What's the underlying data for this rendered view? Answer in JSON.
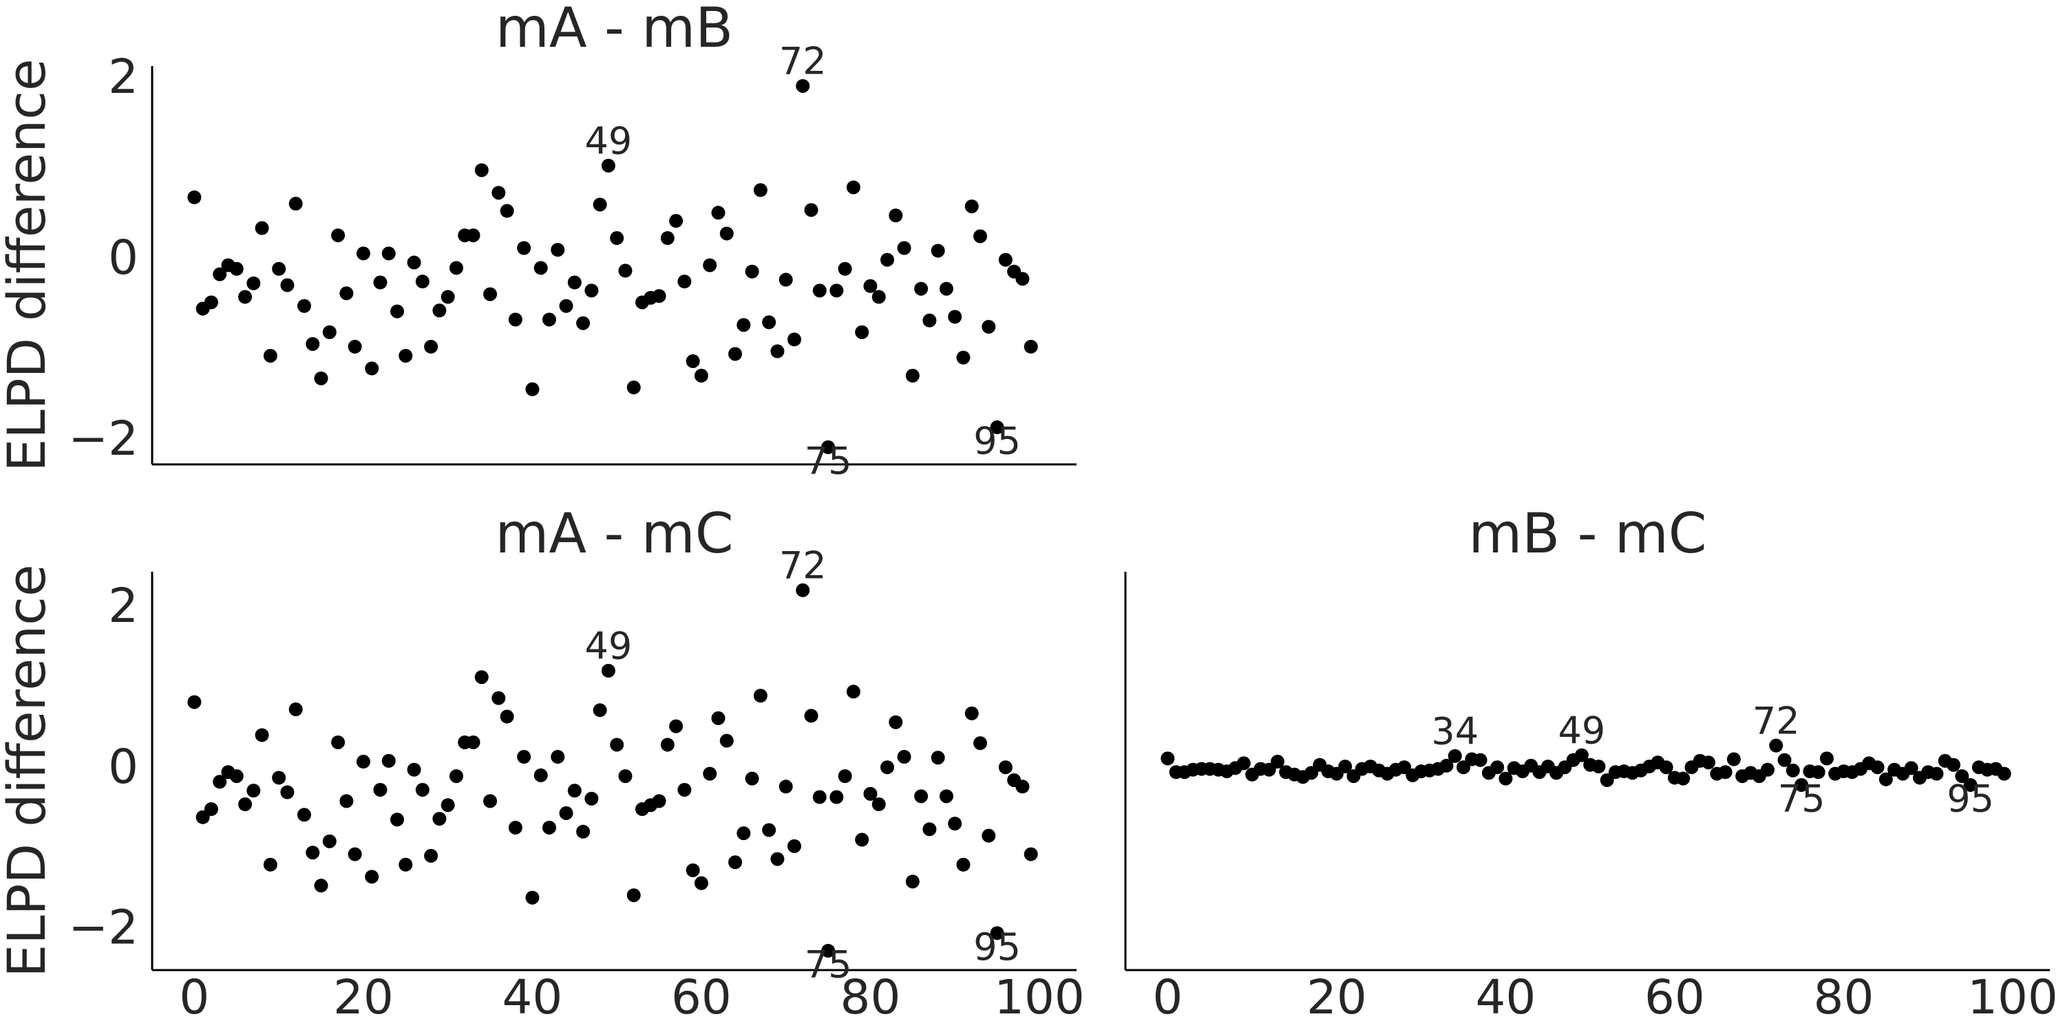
{
  "chart_data": [
    {
      "type": "scatter",
      "title": "mA - mB",
      "ylabel": "ELPD difference",
      "color": "#000000",
      "xlim": [
        -5,
        104.4
      ],
      "ylim": [
        -2.25,
        2.15
      ],
      "yticks": [
        -2,
        0,
        2
      ],
      "values": [
        0.7,
        -0.53,
        -0.46,
        -0.15,
        -0.05,
        -0.09,
        -0.4,
        -0.25,
        0.36,
        -1.05,
        -0.09,
        -0.27,
        0.63,
        -0.5,
        -0.92,
        -1.3,
        -0.79,
        0.28,
        -0.36,
        -0.95,
        0.08,
        -1.19,
        -0.24,
        0.08,
        -0.56,
        -1.05,
        -0.02,
        -0.23,
        -0.95,
        -0.55,
        -0.4,
        -0.08,
        0.28,
        0.28,
        1.0,
        -0.37,
        0.75,
        0.55,
        -0.65,
        0.14,
        -1.42,
        -0.08,
        -0.65,
        0.12,
        -0.5,
        -0.24,
        -0.69,
        -0.33,
        0.62,
        1.05,
        0.25,
        -0.11,
        -1.4,
        -0.46,
        -0.41,
        -0.39,
        0.25,
        0.44,
        -0.23,
        -1.11,
        -1.27,
        -0.05,
        0.53,
        0.3,
        -1.03,
        -0.71,
        -0.12,
        0.78,
        -0.68,
        -1.0,
        -0.21,
        -0.87,
        1.93,
        0.56,
        -0.33,
        -2.06,
        -0.33,
        -0.09,
        0.81,
        -0.79,
        -0.28,
        -0.4,
        0.01,
        0.5,
        0.14,
        -1.27,
        -0.31,
        -0.66,
        0.11,
        -0.31,
        -0.62,
        -1.07,
        0.6,
        0.27,
        -0.73,
        -1.84,
        0.01,
        -0.12,
        -0.2,
        -0.95
      ],
      "annotated": [
        72,
        49,
        75,
        95
      ]
    },
    {
      "type": "scatter",
      "title": "mA - mC",
      "ylabel": "ELPD difference",
      "color": "#000000",
      "xlim": [
        -5,
        104.4
      ],
      "ylim": [
        -2.49,
        2.46
      ],
      "yticks": [
        -2,
        0,
        2
      ],
      "xticks": [
        0,
        20,
        40,
        60,
        80,
        100
      ],
      "values": [
        0.84,
        -0.59,
        -0.49,
        -0.15,
        -0.03,
        -0.08,
        -0.43,
        -0.26,
        0.43,
        -1.18,
        -0.1,
        -0.28,
        0.75,
        -0.56,
        -1.03,
        -1.44,
        -0.89,
        0.34,
        -0.39,
        -1.05,
        0.1,
        -1.33,
        -0.25,
        0.11,
        -0.62,
        -1.18,
        0.0,
        -0.25,
        -1.07,
        -0.61,
        -0.44,
        -0.08,
        0.34,
        0.34,
        1.15,
        -0.39,
        0.89,
        0.66,
        -0.72,
        0.16,
        -1.59,
        -0.07,
        -0.72,
        0.16,
        -0.54,
        -0.26,
        -0.77,
        -0.36,
        0.74,
        1.23,
        0.31,
        -0.08,
        -1.56,
        -0.49,
        -0.44,
        -0.39,
        0.31,
        0.54,
        -0.25,
        -1.25,
        -1.41,
        -0.05,
        0.64,
        0.36,
        -1.15,
        -0.79,
        -0.11,
        0.92,
        -0.75,
        -1.11,
        -0.21,
        -0.95,
        2.23,
        0.67,
        -0.34,
        -2.25,
        -0.34,
        -0.08,
        0.97,
        -0.87,
        -0.3,
        -0.43,
        0.03,
        0.59,
        0.16,
        -1.39,
        -0.33,
        -0.74,
        0.15,
        -0.33,
        -0.67,
        -1.18,
        0.7,
        0.33,
        -0.82,
        -2.03,
        0.03,
        -0.13,
        -0.21,
        -1.05
      ],
      "annotated": [
        72,
        49,
        75,
        95
      ]
    },
    {
      "type": "scatter",
      "title": "mB - mC",
      "color": "#000000",
      "xlim": [
        -5,
        104.4
      ],
      "ylim": [
        -2.49,
        2.46
      ],
      "xticks": [
        0,
        20,
        40,
        60,
        80,
        100
      ],
      "values": [
        0.14,
        -0.03,
        -0.03,
        0.0,
        0.01,
        0.01,
        0.0,
        -0.02,
        0.02,
        0.08,
        -0.06,
        0.01,
        0.0,
        0.1,
        -0.03,
        -0.06,
        -0.09,
        -0.04,
        0.06,
        -0.02,
        -0.05,
        0.04,
        -0.08,
        0.01,
        0.04,
        -0.01,
        -0.05,
        0.0,
        0.03,
        -0.07,
        -0.02,
        -0.01,
        0.01,
        0.05,
        0.17,
        0.03,
        0.13,
        0.12,
        -0.04,
        0.03,
        -0.11,
        0.02,
        -0.02,
        0.05,
        -0.03,
        0.04,
        -0.04,
        0.03,
        0.12,
        0.18,
        0.06,
        0.04,
        -0.13,
        -0.03,
        -0.02,
        -0.04,
        -0.01,
        0.04,
        0.09,
        0.03,
        -0.1,
        -0.11,
        0.03,
        0.11,
        0.09,
        -0.05,
        -0.03,
        0.13,
        -0.08,
        -0.04,
        -0.08,
        0.0,
        0.3,
        0.12,
        -0.01,
        -0.19,
        -0.02,
        -0.03,
        0.14,
        -0.05,
        -0.02,
        -0.03,
        0.01,
        0.08,
        0.03,
        -0.12,
        0.0,
        -0.05,
        0.02,
        -0.1,
        -0.03,
        -0.05,
        0.11,
        0.06,
        -0.08,
        -0.19,
        0.03,
        0.0,
        0.01,
        -0.05
      ],
      "annotated": [
        34,
        49,
        72,
        75,
        95
      ]
    }
  ]
}
